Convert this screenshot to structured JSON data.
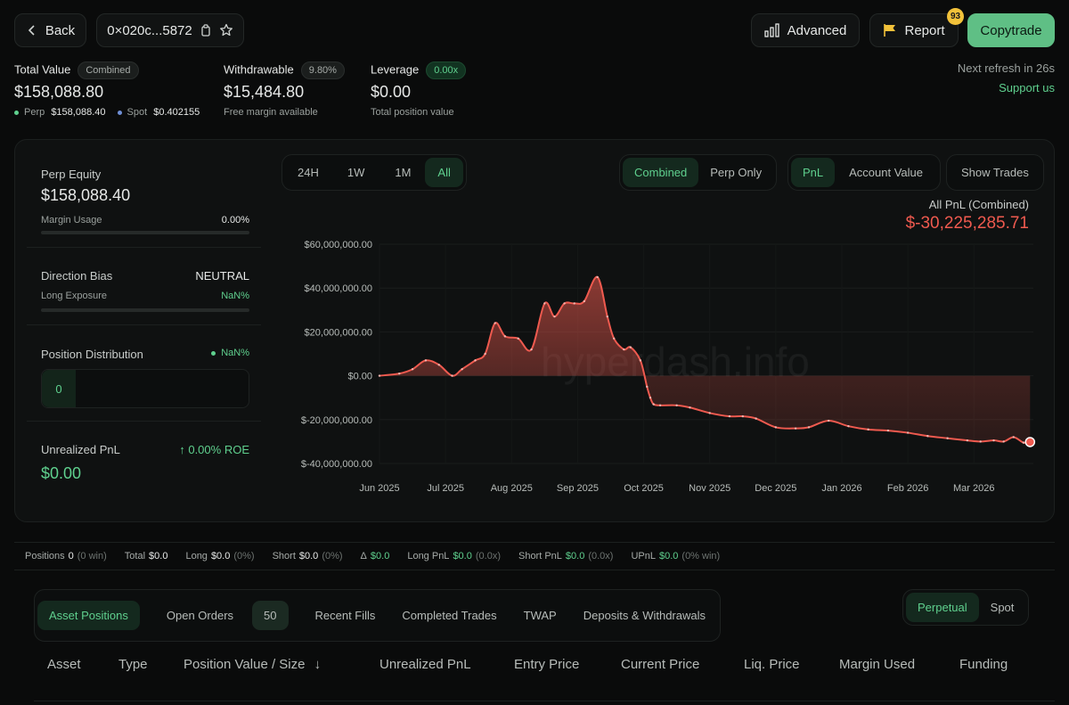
{
  "header": {
    "back_label": "Back",
    "address": "0×020c...5872",
    "advanced_label": "Advanced",
    "report_label": "Report",
    "report_count": "93",
    "copytrade_label": "Copytrade"
  },
  "summary": {
    "total_value": {
      "label": "Total Value",
      "badge": "Combined",
      "value": "$158,088.80",
      "perp_label": "Perp",
      "perp_value": "$158,088.40",
      "spot_label": "Spot",
      "spot_value": "$0.402155"
    },
    "withdrawable": {
      "label": "Withdrawable",
      "badge": "9.80%",
      "value": "$15,484.80",
      "sub": "Free margin available"
    },
    "leverage": {
      "label": "Leverage",
      "badge": "0.00x",
      "value": "$0.00",
      "sub": "Total position value"
    },
    "refresh": "Next refresh in 26s",
    "support": "Support us"
  },
  "left_panel": {
    "perp_equity_label": "Perp Equity",
    "perp_equity_value": "$158,088.40",
    "margin_usage_label": "Margin Usage",
    "margin_usage_value": "0.00%",
    "margin_usage_fraction": 0,
    "direction_bias_label": "Direction Bias",
    "direction_bias_value": "NEUTRAL",
    "long_exposure_label": "Long Exposure",
    "long_exposure_value": "NaN%",
    "position_distribution_label": "Position Distribution",
    "position_distribution_value": "NaN%",
    "position_count": "0",
    "unrealized_label": "Unrealized PnL",
    "roe_value": "0.00% ROE",
    "unrealized_value": "$0.00"
  },
  "chart_controls": {
    "ranges": [
      "24H",
      "1W",
      "1M",
      "All"
    ],
    "active_range": "All",
    "modes": [
      "Combined",
      "Perp Only"
    ],
    "active_mode": "Combined",
    "metrics": [
      "PnL",
      "Account Value"
    ],
    "active_metric": "PnL",
    "show_trades_label": "Show Trades",
    "pnl_title": "All PnL (Combined)",
    "pnl_value": "$-30,225,285.71",
    "watermark": "hyperdash.info"
  },
  "chart_data": {
    "type": "area",
    "title": "",
    "xlabel": "",
    "ylabel": "",
    "y_tick_labels": [
      "$60,000,000.00",
      "$40,000,000.00",
      "$20,000,000.00",
      "$0.00",
      "$-20,000,000.00",
      "$-40,000,000.00"
    ],
    "y_ticks": [
      60000000,
      40000000,
      20000000,
      0,
      -20000000,
      -40000000
    ],
    "x_tick_labels": [
      "Jun 2025",
      "Jul 2025",
      "Aug 2025",
      "Sep 2025",
      "Oct 2025",
      "Nov 2025",
      "Dec 2025",
      "Jan 2026",
      "Feb 2026",
      "Mar 2026"
    ],
    "x_tick_positions": [
      0.5,
      1.5,
      2.5,
      3.5,
      4.5,
      5.5,
      6.5,
      7.5,
      8.5,
      9.5
    ],
    "ylim": [
      -40000000,
      60000000
    ],
    "xlim": [
      0.5,
      10.4
    ],
    "grid": true,
    "series": [
      {
        "color": "#ef5a4f",
        "x": [
          0.5,
          0.8,
          1.0,
          1.2,
          1.4,
          1.6,
          1.75,
          1.95,
          2.1,
          2.25,
          2.4,
          2.6,
          2.8,
          3.0,
          3.15,
          3.3,
          3.45,
          3.6,
          3.8,
          3.95,
          4.05,
          4.2,
          4.3,
          4.45,
          4.55,
          4.6,
          4.65,
          4.75,
          5.0,
          5.2,
          5.5,
          5.8,
          6.0,
          6.2,
          6.5,
          6.8,
          7.0,
          7.3,
          7.6,
          7.9,
          8.2,
          8.5,
          8.8,
          9.1,
          9.4,
          9.6,
          9.8,
          9.95,
          10.1,
          10.25,
          10.35
        ],
        "y": [
          0,
          1000000,
          3000000,
          7000000,
          5000000,
          0,
          3000000,
          7000000,
          10000000,
          24000000,
          18000000,
          17000000,
          12000000,
          33000000,
          27000000,
          33000000,
          33000000,
          34000000,
          45000000,
          27000000,
          17000000,
          12000000,
          13000000,
          7000000,
          -5000000,
          -10000000,
          -13000000,
          -13500000,
          -13500000,
          -14500000,
          -17000000,
          -18500000,
          -18500000,
          -19500000,
          -23500000,
          -24000000,
          -23500000,
          -20500000,
          -23000000,
          -24500000,
          -25000000,
          -26000000,
          -27500000,
          -28500000,
          -29500000,
          -30000000,
          -29500000,
          -30000000,
          -28000000,
          -30500000,
          -30225285.71
        ]
      }
    ]
  },
  "stats": {
    "positions_label": "Positions",
    "positions_value": "0",
    "positions_sub": "(0 win)",
    "total_label": "Total",
    "total_value": "$0.0",
    "long_label": "Long",
    "long_value": "$0.0",
    "long_sub": "(0%)",
    "short_label": "Short",
    "short_value": "$0.0",
    "short_sub": "(0%)",
    "delta_label": "Δ",
    "delta_value": "$0.0",
    "long_pnl_label": "Long PnL",
    "long_pnl_value": "$0.0",
    "long_pnl_sub": "(0.0x)",
    "short_pnl_label": "Short PnL",
    "short_pnl_value": "$0.0",
    "short_pnl_sub": "(0.0x)",
    "upnl_label": "UPnL",
    "upnl_value": "$0.0",
    "upnl_sub": "(0% win)"
  },
  "tabs": {
    "items": [
      "Asset Positions",
      "Open Orders",
      "Recent Fills",
      "Completed Trades",
      "TWAP",
      "Deposits & Withdrawals"
    ],
    "open_orders_count": "50",
    "active": "Asset Positions",
    "market": [
      "Perpetual",
      "Spot"
    ],
    "active_market": "Perpetual"
  },
  "table": {
    "columns": [
      "Asset",
      "Type",
      "Position Value / Size",
      "Unrealized PnL",
      "Entry Price",
      "Current Price",
      "Liq. Price",
      "Margin Used",
      "Funding"
    ],
    "sort_indicator": "↓"
  },
  "colors": {
    "accent_green": "#5fd08e",
    "loss_red": "#ef5a4f",
    "background": "#0a0b0b"
  }
}
